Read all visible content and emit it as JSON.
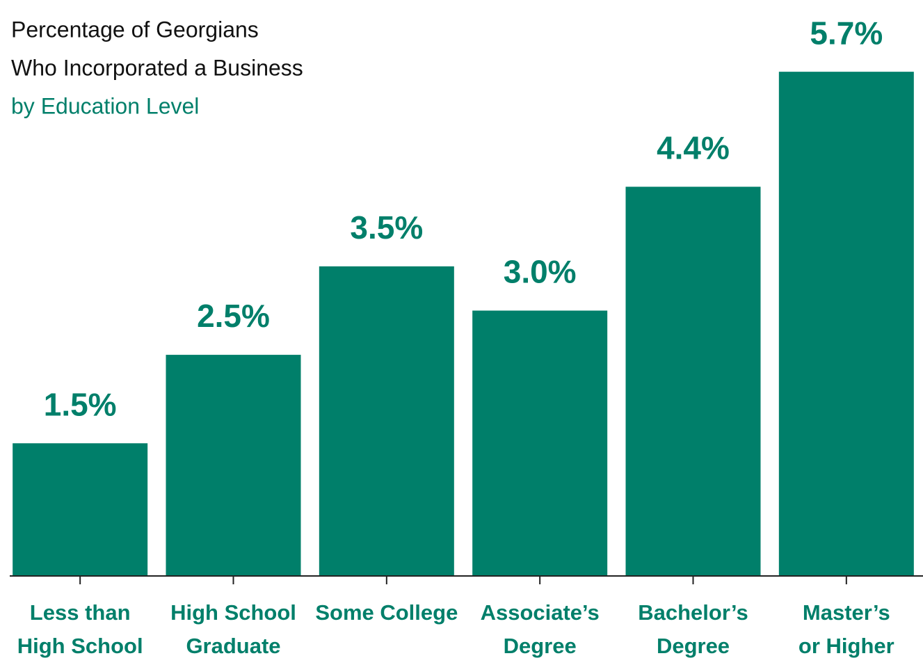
{
  "chart_data": {
    "type": "bar",
    "title": [
      "Percentage of Georgians",
      "Who Incorporated a Business"
    ],
    "subtitle": "by Education Level",
    "categories": [
      [
        "Less than",
        "High School"
      ],
      [
        "High School",
        "Graduate"
      ],
      [
        "Some College"
      ],
      [
        "Associate’s",
        "Degree"
      ],
      [
        "Bachelor’s",
        "Degree"
      ],
      [
        "Master’s",
        "or Higher"
      ]
    ],
    "values": [
      1.5,
      2.5,
      3.5,
      3.0,
      4.4,
      5.7
    ],
    "value_labels": [
      "1.5%",
      "2.5%",
      "3.5%",
      "3.0%",
      "4.4%",
      "5.7%"
    ],
    "color": "#007f6a",
    "ylim": [
      0,
      6
    ]
  }
}
